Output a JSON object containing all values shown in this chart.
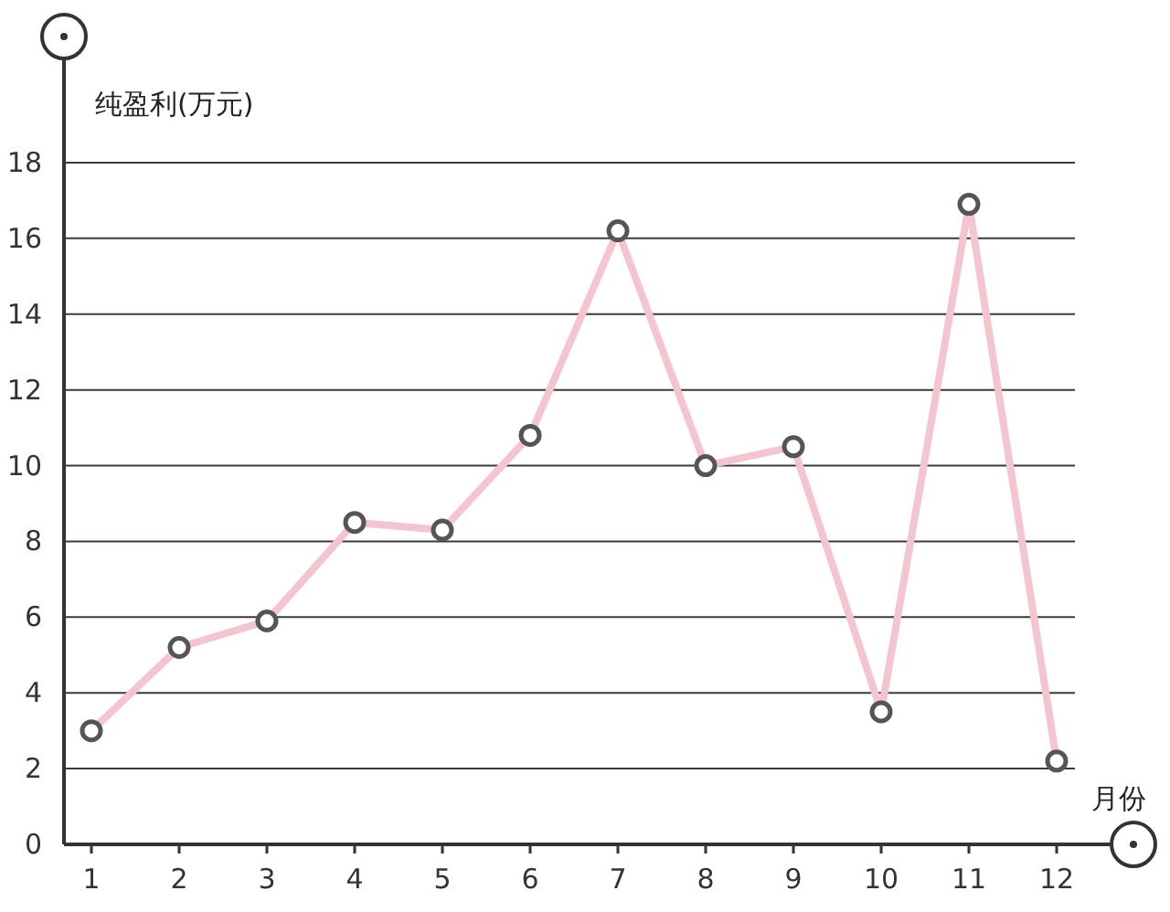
{
  "chart_data": {
    "type": "line",
    "ylabel": "纯盈利(万元)",
    "xlabel": "月份",
    "categories": [
      "1",
      "2",
      "3",
      "4",
      "5",
      "6",
      "7",
      "8",
      "9",
      "10",
      "11",
      "12"
    ],
    "series": [
      {
        "color": "#f4c4cf",
        "values": [
          3.0,
          5.2,
          5.9,
          8.5,
          8.3,
          10.8,
          16.2,
          10.0,
          10.5,
          3.5,
          16.9,
          2.2
        ]
      }
    ],
    "ylim": [
      0,
      20.75
    ],
    "yticks": [
      0,
      2,
      4,
      6,
      8,
      10,
      12,
      14,
      16,
      18
    ],
    "grid": "y",
    "marker": "circle",
    "line_style": "solid"
  }
}
